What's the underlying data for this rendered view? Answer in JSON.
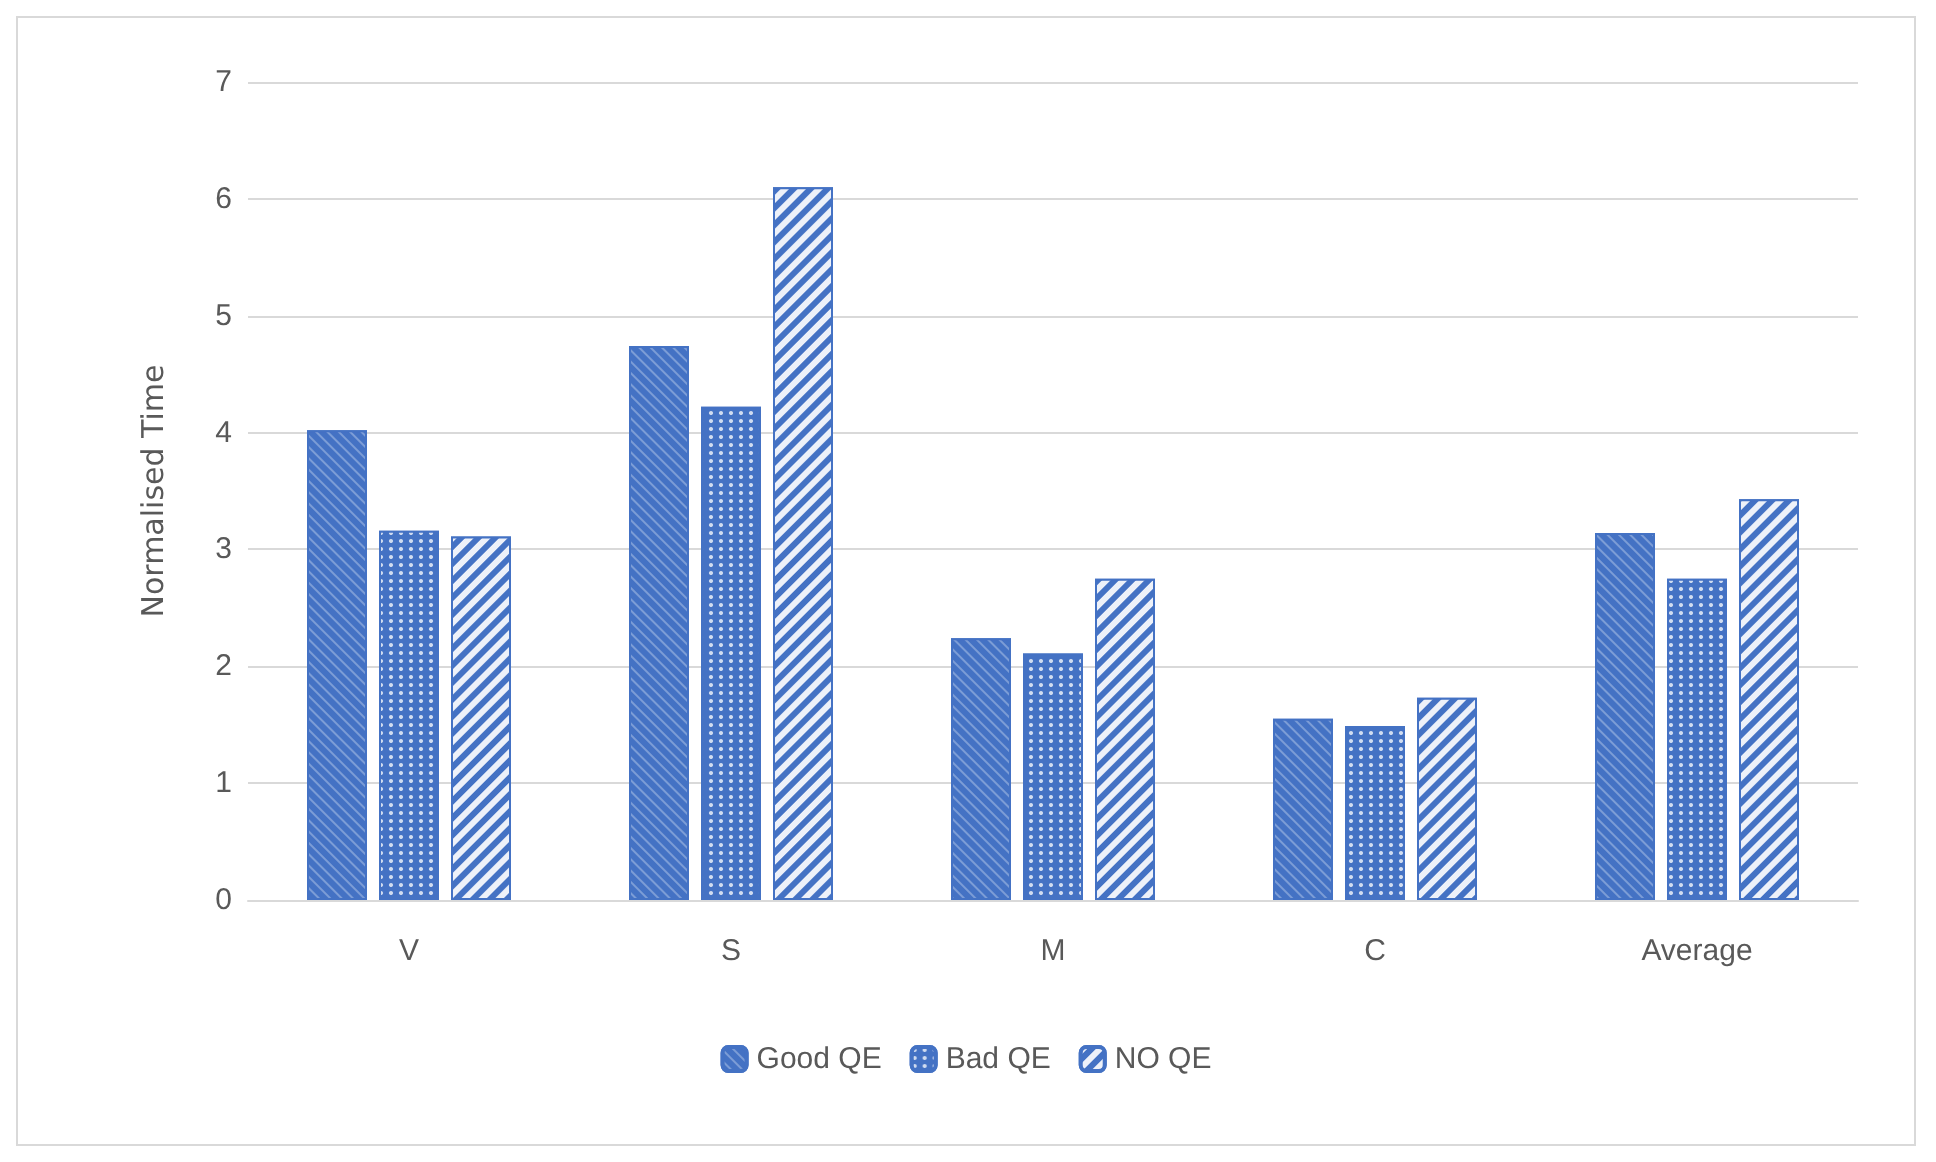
{
  "chart_data": {
    "type": "bar",
    "ylabel": "Normalised Time",
    "categories": [
      "V",
      "S",
      "M",
      "C",
      "Average"
    ],
    "series": [
      {
        "name": "Good QE",
        "color": "#4472c4",
        "values": [
          4.02,
          4.74,
          2.24,
          1.55,
          3.14
        ]
      },
      {
        "name": "Bad QE",
        "color": "#4472c4",
        "values": [
          3.16,
          4.22,
          2.11,
          1.49,
          2.75
        ]
      },
      {
        "name": "NO QE",
        "color": "#4472c4",
        "values": [
          3.11,
          6.1,
          2.75,
          1.73,
          3.43
        ]
      }
    ],
    "ylim": [
      0,
      7
    ],
    "yticks": [
      0,
      1,
      2,
      3,
      4,
      5,
      6,
      7
    ],
    "grid": "y",
    "legend": "bottom"
  }
}
